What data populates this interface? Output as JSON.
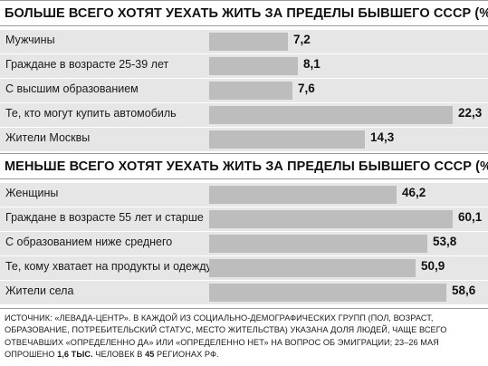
{
  "colors": {
    "bar": "#bdbdbd",
    "band": "#e6e6e6",
    "text": "#1a1a1a",
    "rule": "#9a9a9a"
  },
  "chart_data": [
    {
      "type": "bar",
      "orientation": "horizontal",
      "title": "БОЛЬШЕ ВСЕГО ХОТЯТ УЕХАТЬ ЖИТЬ ЗА ПРЕДЕЛЫ БЫВШЕГО СССР (%)",
      "categories": [
        "Мужчины",
        "Граждане в возрасте 25-39 лет",
        "С высшим образованием",
        "Те, кто могут купить автомобиль",
        "Жители Москвы"
      ],
      "values": [
        7.2,
        8.1,
        7.6,
        22.3,
        14.3
      ],
      "labels": [
        "7,2",
        "8,1",
        "7,6",
        "22,3",
        "14,3"
      ]
    },
    {
      "type": "bar",
      "orientation": "horizontal",
      "title": "МЕНЬШЕ ВСЕГО ХОТЯТ УЕХАТЬ ЖИТЬ ЗА ПРЕДЕЛЫ БЫВШЕГО СССР (%)",
      "categories": [
        "Женщины",
        "Граждане в возрасте 55 лет и старше",
        "С образованием ниже среднего",
        "Те, кому хватает на продукты и одежду",
        "Жители села"
      ],
      "values": [
        46.2,
        60.1,
        53.8,
        50.9,
        58.6
      ],
      "labels": [
        "46,2",
        "60,1",
        "53,8",
        "50,9",
        "58,6"
      ]
    }
  ],
  "footnote": {
    "part1": "ИСТОЧНИК: «ЛЕВАДА-ЦЕНТР». В КАЖДОЙ ИЗ СОЦИАЛЬНО-ДЕМОГРАФИЧЕСКИХ ГРУПП (ПОЛ, ВОЗРАСТ, ОБРАЗОВАНИЕ, ПОТРЕБИТЕЛЬСКИЙ СТАТУС, МЕСТО ЖИТЕЛЬСТВА) УКАЗАНА ДОЛЯ ЛЮДЕЙ, ЧАЩЕ ВСЕГО ОТВЕЧАВШИХ «ОПРЕДЕЛЕННО ДА» ИЛИ «ОПРЕДЕЛЕННО НЕТ» НА ВОПРОС ОБ ЭМИГРАЦИИ; 23–26 МАЯ ОПРОШЕНО ",
    "bold1": "1,6 ТЫС.",
    "part2": " ЧЕЛОВЕК В ",
    "bold2": "45",
    "part3": " РЕГИОНАХ РФ."
  }
}
